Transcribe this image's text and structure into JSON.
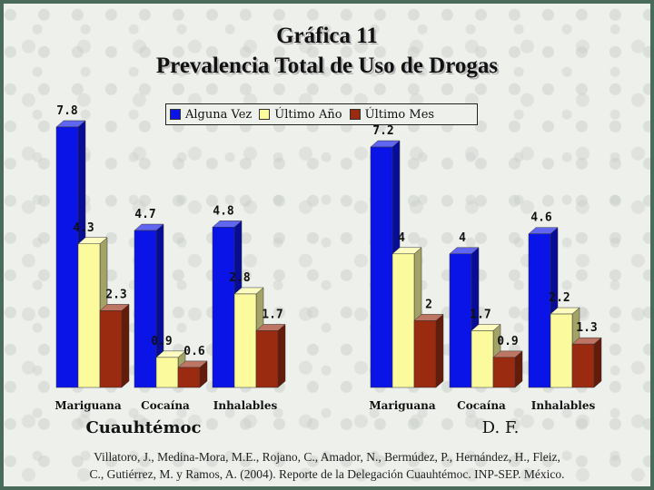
{
  "title_line1": "Gráfica 11",
  "title_line2": "Prevalencia Total de Uso de Drogas",
  "citation_line1": "Villatoro, J., Medina-Mora, M.E., Rojano, C., Amador, N., Bermúdez, P., Hernández, H., Fleiz,",
  "citation_line2": "C., Gutiérrez, M. y Ramos, A. (2004). Reporte de la Delegación Cuauhtémoc. INP-SEP. México.",
  "colors": {
    "alguna_vez": "#0a14e6",
    "ultimo_anio": "#fbfb9e",
    "ultimo_mes": "#9a2a10"
  },
  "chart_data": [
    {
      "type": "bar",
      "title": "Cuauhtémoc",
      "categories": [
        "Mariguana",
        "Cocaína",
        "Inhalables"
      ],
      "series": [
        {
          "name": "Alguna Vez",
          "values": [
            7.8,
            4.7,
            4.8
          ]
        },
        {
          "name": "Último Año",
          "values": [
            4.3,
            0.9,
            2.8
          ]
        },
        {
          "name": "Último Mes",
          "values": [
            2.3,
            0.6,
            1.7
          ]
        }
      ],
      "value_labels": [
        [
          "7.8",
          "4.7",
          "4.8"
        ],
        [
          "4.3",
          "0.9",
          "2.8"
        ],
        [
          "2.3",
          "0.6",
          "1.7"
        ]
      ],
      "legend": "top"
    },
    {
      "type": "bar",
      "title": "D. F.",
      "categories": [
        "Mariguana",
        "Cocaína",
        "Inhalables"
      ],
      "series": [
        {
          "name": "Alguna Vez",
          "values": [
            7.2,
            4,
            4.6
          ]
        },
        {
          "name": "Último Año",
          "values": [
            4,
            1.7,
            2.2
          ]
        },
        {
          "name": "Último Mes",
          "values": [
            2,
            0.9,
            1.3
          ]
        }
      ],
      "value_labels": [
        [
          "7.2",
          "4",
          "4.6"
        ],
        [
          "4",
          "1.7",
          "2.2"
        ],
        [
          "2",
          "0.9",
          "1.3"
        ]
      ]
    }
  ]
}
